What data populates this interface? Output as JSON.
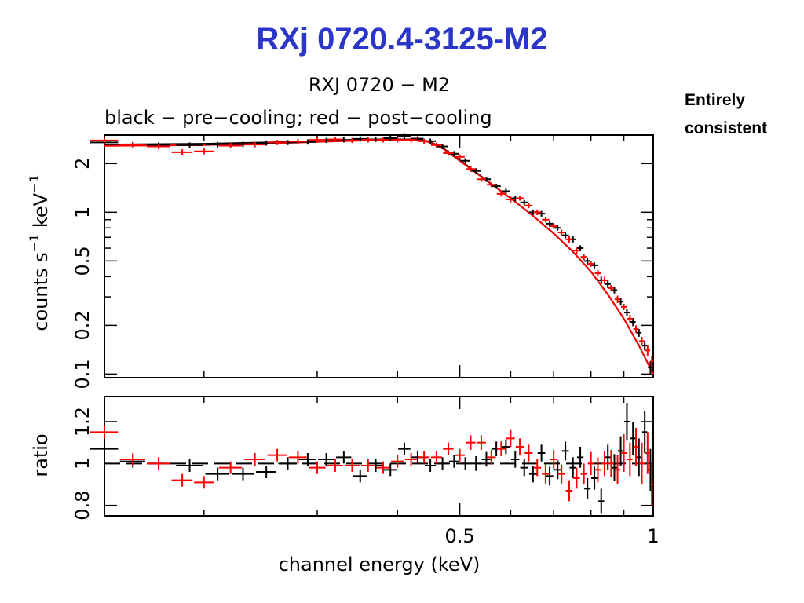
{
  "slide": {
    "title": "RXj 0720.4-3125-M2",
    "title_color": "#2b35c8",
    "note_line1": "Entirely",
    "note_line2": "consistent"
  },
  "chart_data": {
    "type": "line",
    "title": "RXJ 0720 − M2",
    "subtitle": "black − pre−cooling; red − post−cooling",
    "xlabel": "channel energy (keV)",
    "x_scale": "log",
    "xlim": [
      0.14,
      1.0
    ],
    "x_ticks": [
      0.5,
      1
    ],
    "x_tick_labels": [
      "0.5",
      "1"
    ],
    "grid": false,
    "colors": {
      "pre": "#000000",
      "post": "#ff0000"
    },
    "panels": {
      "spectrum": {
        "ylabel_main": "counts s",
        "ylabel_exp1": "−1",
        "ylabel_mid": " keV",
        "ylabel_exp2": "−1",
        "y_scale": "log",
        "ylim": [
          0.095,
          3.0
        ],
        "y_ticks": [
          0.1,
          0.2,
          0.5,
          1,
          2
        ],
        "y_tick_labels": [
          "0.1",
          "0.2",
          "0.5",
          "1",
          "2"
        ],
        "model_x": [
          0.14,
          0.2,
          0.25,
          0.3,
          0.35,
          0.4,
          0.43,
          0.45,
          0.47,
          0.5,
          0.55,
          0.6,
          0.65,
          0.7,
          0.75,
          0.8,
          0.85,
          0.9,
          0.95,
          1.0
        ],
        "model": [
          {
            "name": "pre-cooling",
            "color": "#000000",
            "y": [
              2.62,
              2.65,
              2.7,
              2.75,
              2.8,
              2.82,
              2.82,
              2.72,
              2.5,
              2.1,
              1.58,
              1.22,
              0.95,
              0.74,
              0.57,
              0.43,
              0.31,
              0.22,
              0.15,
              0.1
            ]
          },
          {
            "name": "post-cooling",
            "color": "#ff0000",
            "y": [
              2.57,
              2.6,
              2.66,
              2.72,
              2.77,
              2.8,
              2.8,
              2.7,
              2.48,
              2.08,
              1.57,
              1.22,
              0.95,
              0.74,
              0.57,
              0.43,
              0.31,
              0.22,
              0.15,
              0.1
            ]
          }
        ],
        "series": [
          {
            "name": "pre-cooling",
            "color": "#000000",
            "x": [
              0.14,
              0.155,
              0.17,
              0.19,
              0.21,
              0.23,
              0.25,
              0.27,
              0.29,
              0.31,
              0.33,
              0.35,
              0.37,
              0.39,
              0.41,
              0.43,
              0.45,
              0.47,
              0.49,
              0.51,
              0.53,
              0.55,
              0.57,
              0.59,
              0.61,
              0.63,
              0.65,
              0.67,
              0.69,
              0.71,
              0.73,
              0.75,
              0.77,
              0.79,
              0.81,
              0.83,
              0.85,
              0.87,
              0.89,
              0.91,
              0.93,
              0.95,
              0.97,
              0.99
            ],
            "y": [
              2.7,
              2.62,
              2.6,
              2.6,
              2.62,
              2.63,
              2.68,
              2.7,
              2.72,
              2.78,
              2.8,
              2.84,
              2.82,
              2.87,
              2.95,
              2.85,
              2.75,
              2.55,
              2.3,
              2.08,
              1.8,
              1.6,
              1.45,
              1.35,
              1.22,
              1.15,
              1.0,
              0.98,
              0.85,
              0.8,
              0.72,
              0.68,
              0.6,
              0.5,
              0.47,
              0.38,
              0.36,
              0.33,
              0.28,
              0.24,
              0.21,
              0.18,
              0.15,
              0.11
            ],
            "ex": [
              0.007,
              0.007,
              0.007,
              0.009,
              0.009,
              0.009,
              0.009,
              0.009,
              0.009,
              0.009,
              0.009,
              0.009,
              0.009,
              0.009,
              0.009,
              0.009,
              0.009,
              0.009,
              0.009,
              0.009,
              0.009,
              0.009,
              0.009,
              0.009,
              0.009,
              0.009,
              0.009,
              0.009,
              0.009,
              0.009,
              0.009,
              0.009,
              0.009,
              0.009,
              0.009,
              0.009,
              0.009,
              0.009,
              0.009,
              0.009,
              0.009,
              0.009,
              0.009,
              0.009
            ],
            "ey": [
              0.1,
              0.1,
              0.1,
              0.1,
              0.1,
              0.1,
              0.1,
              0.1,
              0.1,
              0.1,
              0.1,
              0.1,
              0.1,
              0.1,
              0.1,
              0.1,
              0.1,
              0.1,
              0.09,
              0.08,
              0.07,
              0.06,
              0.05,
              0.05,
              0.05,
              0.04,
              0.04,
              0.04,
              0.035,
              0.03,
              0.03,
              0.03,
              0.025,
              0.025,
              0.02,
              0.02,
              0.02,
              0.015,
              0.015,
              0.012,
              0.012,
              0.01,
              0.01,
              0.01
            ]
          },
          {
            "name": "post-cooling",
            "color": "#ff0000",
            "x": [
              0.14,
              0.155,
              0.17,
              0.185,
              0.2,
              0.22,
              0.24,
              0.26,
              0.28,
              0.3,
              0.32,
              0.34,
              0.36,
              0.38,
              0.4,
              0.42,
              0.44,
              0.46,
              0.48,
              0.5,
              0.52,
              0.54,
              0.56,
              0.58,
              0.6,
              0.62,
              0.64,
              0.66,
              0.68,
              0.7,
              0.72,
              0.74,
              0.76,
              0.78,
              0.8,
              0.82,
              0.84,
              0.86,
              0.88,
              0.9,
              0.92,
              0.94,
              0.96,
              0.98,
              0.995
            ],
            "y": [
              2.78,
              2.6,
              2.55,
              2.35,
              2.38,
              2.58,
              2.62,
              2.7,
              2.74,
              2.8,
              2.82,
              2.78,
              2.8,
              2.8,
              2.8,
              2.8,
              2.75,
              2.6,
              2.32,
              2.2,
              1.85,
              1.6,
              1.48,
              1.3,
              1.2,
              1.22,
              1.1,
              1.0,
              0.9,
              0.82,
              0.75,
              0.68,
              0.58,
              0.53,
              0.48,
              0.42,
              0.38,
              0.34,
              0.29,
              0.26,
              0.22,
              0.19,
              0.16,
              0.14,
              0.12
            ],
            "ex": [
              0.007,
              0.007,
              0.007,
              0.007,
              0.007,
              0.009,
              0.009,
              0.009,
              0.009,
              0.009,
              0.009,
              0.009,
              0.009,
              0.009,
              0.009,
              0.009,
              0.009,
              0.009,
              0.009,
              0.009,
              0.009,
              0.009,
              0.009,
              0.009,
              0.009,
              0.009,
              0.009,
              0.009,
              0.009,
              0.009,
              0.009,
              0.009,
              0.009,
              0.009,
              0.009,
              0.009,
              0.009,
              0.009,
              0.009,
              0.009,
              0.009,
              0.009,
              0.009,
              0.009,
              0.005
            ],
            "ey": [
              0.1,
              0.1,
              0.1,
              0.1,
              0.1,
              0.1,
              0.1,
              0.1,
              0.1,
              0.1,
              0.1,
              0.1,
              0.1,
              0.1,
              0.1,
              0.1,
              0.1,
              0.1,
              0.09,
              0.08,
              0.07,
              0.06,
              0.05,
              0.05,
              0.05,
              0.04,
              0.04,
              0.04,
              0.035,
              0.03,
              0.03,
              0.03,
              0.025,
              0.025,
              0.02,
              0.02,
              0.02,
              0.015,
              0.015,
              0.012,
              0.012,
              0.01,
              0.01,
              0.01,
              0.01
            ]
          }
        ]
      },
      "ratio": {
        "ylabel": "ratio",
        "ylim": [
          0.75,
          1.32
        ],
        "y_ticks": [
          0.8,
          1,
          1.2
        ],
        "y_tick_labels": [
          "0.8",
          "1",
          "1.2"
        ],
        "reference_line": 1,
        "series": [
          {
            "name": "pre-cooling",
            "color": "#000000",
            "x": [
              0.14,
              0.155,
              0.17,
              0.19,
              0.21,
              0.23,
              0.25,
              0.27,
              0.29,
              0.31,
              0.33,
              0.35,
              0.37,
              0.39,
              0.41,
              0.43,
              0.45,
              0.47,
              0.49,
              0.51,
              0.53,
              0.55,
              0.57,
              0.59,
              0.61,
              0.63,
              0.65,
              0.67,
              0.69,
              0.71,
              0.73,
              0.75,
              0.77,
              0.79,
              0.81,
              0.83,
              0.85,
              0.87,
              0.89,
              0.91,
              0.93,
              0.95,
              0.97,
              0.99
            ],
            "y": [
              1.07,
              1.01,
              1.0,
              0.99,
              0.95,
              0.95,
              0.96,
              1.0,
              1.02,
              1.02,
              1.03,
              0.94,
              0.99,
              0.97,
              1.07,
              1.03,
              0.99,
              1.0,
              1.01,
              1.0,
              1.0,
              1.02,
              1.07,
              1.08,
              1.02,
              0.98,
              0.95,
              1.05,
              0.94,
              0.97,
              1.06,
              0.98,
              1.03,
              0.88,
              0.93,
              0.82,
              1.03,
              0.98,
              1.06,
              1.2,
              1.12,
              1.03,
              1.15,
              0.97
            ],
            "ex": [
              0.007,
              0.007,
              0.007,
              0.009,
              0.009,
              0.009,
              0.009,
              0.009,
              0.009,
              0.009,
              0.009,
              0.009,
              0.009,
              0.009,
              0.009,
              0.009,
              0.009,
              0.009,
              0.009,
              0.009,
              0.009,
              0.009,
              0.009,
              0.009,
              0.009,
              0.009,
              0.009,
              0.009,
              0.009,
              0.009,
              0.009,
              0.009,
              0.009,
              0.009,
              0.009,
              0.009,
              0.009,
              0.009,
              0.009,
              0.009,
              0.009,
              0.009,
              0.009,
              0.009
            ],
            "ey": [
              0.03,
              0.03,
              0.03,
              0.03,
              0.03,
              0.03,
              0.03,
              0.03,
              0.03,
              0.03,
              0.03,
              0.03,
              0.03,
              0.03,
              0.03,
              0.03,
              0.03,
              0.03,
              0.03,
              0.03,
              0.035,
              0.035,
              0.035,
              0.035,
              0.04,
              0.04,
              0.04,
              0.04,
              0.045,
              0.045,
              0.045,
              0.05,
              0.05,
              0.05,
              0.055,
              0.06,
              0.06,
              0.065,
              0.07,
              0.09,
              0.08,
              0.09,
              0.1,
              0.1
            ]
          },
          {
            "name": "post-cooling",
            "color": "#ff0000",
            "x": [
              0.14,
              0.155,
              0.17,
              0.185,
              0.2,
              0.22,
              0.24,
              0.26,
              0.28,
              0.3,
              0.32,
              0.34,
              0.36,
              0.38,
              0.4,
              0.42,
              0.44,
              0.46,
              0.48,
              0.5,
              0.52,
              0.54,
              0.56,
              0.58,
              0.6,
              0.62,
              0.64,
              0.66,
              0.68,
              0.7,
              0.72,
              0.74,
              0.76,
              0.78,
              0.8,
              0.82,
              0.84,
              0.86,
              0.88,
              0.9,
              0.92,
              0.94,
              0.96,
              0.98,
              0.995
            ],
            "y": [
              1.15,
              1.02,
              1.0,
              0.92,
              0.91,
              0.98,
              1.02,
              1.04,
              1.03,
              0.98,
              0.99,
              0.99,
              0.99,
              0.98,
              1.01,
              1.02,
              1.03,
              1.03,
              1.07,
              1.04,
              1.1,
              1.1,
              1.03,
              1.07,
              1.12,
              1.08,
              1.05,
              0.98,
              0.95,
              1.02,
              0.95,
              0.87,
              0.93,
              0.95,
              1.0,
              0.97,
              1.0,
              1.0,
              0.97,
              1.05,
              1.02,
              1.08,
              1.0,
              1.05,
              0.9
            ],
            "ex": [
              0.007,
              0.007,
              0.007,
              0.007,
              0.007,
              0.009,
              0.009,
              0.009,
              0.009,
              0.009,
              0.009,
              0.009,
              0.009,
              0.009,
              0.009,
              0.009,
              0.009,
              0.009,
              0.009,
              0.009,
              0.009,
              0.009,
              0.009,
              0.009,
              0.009,
              0.009,
              0.009,
              0.009,
              0.009,
              0.009,
              0.009,
              0.009,
              0.009,
              0.009,
              0.009,
              0.009,
              0.009,
              0.009,
              0.009,
              0.009,
              0.009,
              0.009,
              0.009,
              0.009,
              0.005
            ],
            "ey": [
              0.03,
              0.03,
              0.03,
              0.03,
              0.03,
              0.03,
              0.03,
              0.03,
              0.03,
              0.03,
              0.03,
              0.03,
              0.03,
              0.03,
              0.03,
              0.03,
              0.03,
              0.03,
              0.03,
              0.03,
              0.035,
              0.035,
              0.035,
              0.035,
              0.04,
              0.04,
              0.04,
              0.04,
              0.045,
              0.045,
              0.045,
              0.05,
              0.05,
              0.05,
              0.055,
              0.06,
              0.06,
              0.065,
              0.07,
              0.09,
              0.08,
              0.09,
              0.1,
              0.1,
              0.1
            ]
          }
        ]
      }
    }
  }
}
